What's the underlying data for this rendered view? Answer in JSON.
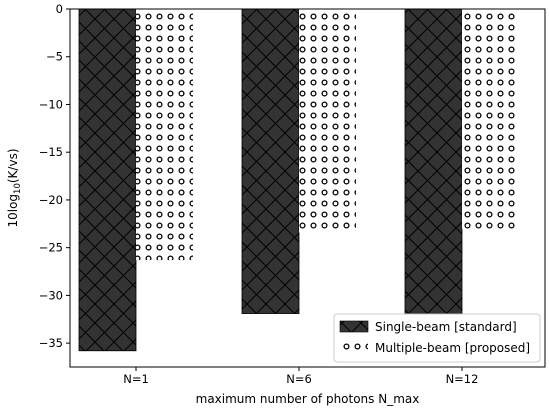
{
  "chart_data": {
    "type": "bar",
    "categories": [
      "N=1",
      "N=6",
      "N=12"
    ],
    "series": [
      {
        "name": "Single-beam [standard]",
        "values": [
          -35.8,
          -31.9,
          -31.9
        ],
        "color": "#333333",
        "hatch": "crosshatch"
      },
      {
        "name": "Multiple-beam [proposed]",
        "values": [
          -26.3,
          -23.4,
          -23.0
        ],
        "color": "#ffffff",
        "hatch": "circles"
      }
    ],
    "xlabel": "maximum number of photons N_max",
    "ylabel_main": "10log",
    "ylabel_sub": "10",
    "ylabel_rest": "(K/vs)",
    "ylim": [
      -37.5,
      0
    ],
    "yticks": [
      0,
      -5,
      -10,
      -15,
      -20,
      -25,
      -30,
      -35
    ],
    "grid": false,
    "legend_position": "lower-right"
  }
}
